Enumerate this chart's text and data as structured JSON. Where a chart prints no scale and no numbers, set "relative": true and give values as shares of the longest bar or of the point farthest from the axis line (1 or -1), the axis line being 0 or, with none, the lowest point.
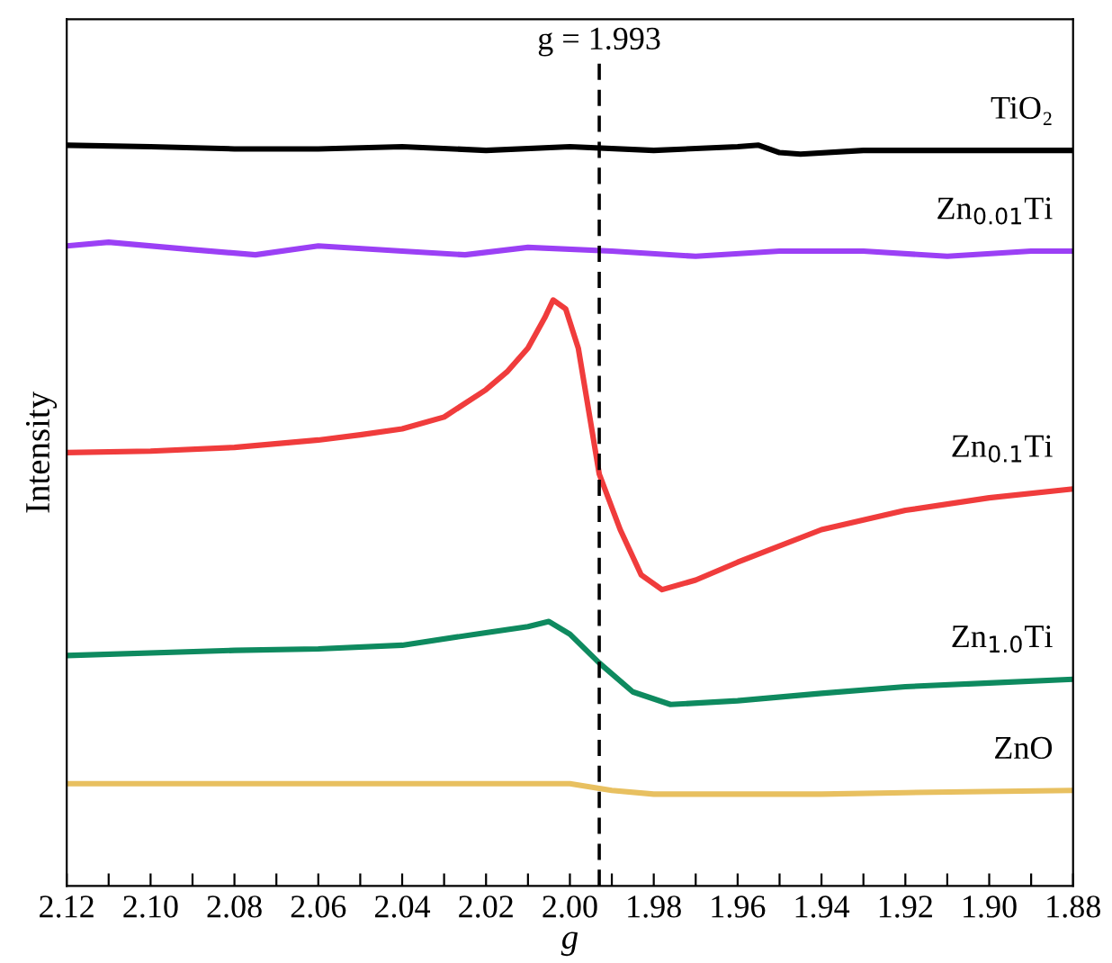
{
  "chart_data": {
    "type": "line",
    "xlabel": "g",
    "ylabel": "Intensity",
    "relative": true,
    "xlim": [
      2.12,
      1.88
    ],
    "xticks": [
      {
        "value": 2.12,
        "label": "2.12"
      },
      {
        "value": 2.11,
        "label": null
      },
      {
        "value": 2.1,
        "label": "2.10"
      },
      {
        "value": 2.09,
        "label": null
      },
      {
        "value": 2.08,
        "label": "2.08"
      },
      {
        "value": 2.07,
        "label": null
      },
      {
        "value": 2.06,
        "label": "2.06"
      },
      {
        "value": 2.05,
        "label": null
      },
      {
        "value": 2.04,
        "label": "2.04"
      },
      {
        "value": 2.03,
        "label": null
      },
      {
        "value": 2.02,
        "label": "2.02"
      },
      {
        "value": 2.01,
        "label": null
      },
      {
        "value": 2.0,
        "label": "2.00"
      },
      {
        "value": 1.99,
        "label": null
      },
      {
        "value": 1.98,
        "label": "1.98"
      },
      {
        "value": 1.97,
        "label": null
      },
      {
        "value": 1.96,
        "label": "1.96"
      },
      {
        "value": 1.95,
        "label": null
      },
      {
        "value": 1.94,
        "label": "1.94"
      },
      {
        "value": 1.93,
        "label": null
      },
      {
        "value": 1.92,
        "label": "1.92"
      },
      {
        "value": 1.91,
        "label": null
      },
      {
        "value": 1.9,
        "label": "1.90"
      },
      {
        "value": 1.89,
        "label": null
      },
      {
        "value": 1.88,
        "label": "1.88"
      }
    ],
    "ref_lines": [
      {
        "axis": "x",
        "value": 1.993,
        "label": "g = 1.993",
        "color": "#000000",
        "line_style": "dashed"
      }
    ],
    "series": [
      {
        "name": "TiO₂",
        "color": "#000000",
        "x": [
          2.12,
          2.1,
          2.08,
          2.06,
          2.04,
          2.02,
          2.0,
          1.98,
          1.96,
          1.955,
          1.95,
          1.945,
          1.93,
          1.91,
          1.88
        ],
        "values": [
          1.0,
          0.998,
          0.995,
          0.995,
          0.998,
          0.993,
          0.998,
          0.993,
          0.998,
          1.0,
          0.99,
          0.988,
          0.993,
          0.993,
          0.993
        ]
      },
      {
        "name": "Zn$_{0.01}$Ti",
        "color": "#9b40f5",
        "x": [
          2.12,
          2.11,
          2.09,
          2.075,
          2.06,
          2.04,
          2.025,
          2.01,
          1.99,
          1.97,
          1.95,
          1.93,
          1.91,
          1.89,
          1.88
        ],
        "values": [
          0.864,
          0.869,
          0.859,
          0.852,
          0.864,
          0.857,
          0.852,
          0.862,
          0.857,
          0.85,
          0.857,
          0.857,
          0.85,
          0.857,
          0.857
        ]
      },
      {
        "name": "Zn$_{0.1}$Ti",
        "color": "#f03c3c",
        "x": [
          2.12,
          2.1,
          2.08,
          2.06,
          2.05,
          2.04,
          2.03,
          2.02,
          2.015,
          2.01,
          2.006,
          2.004,
          2.001,
          1.998,
          1.993,
          1.988,
          1.983,
          1.978,
          1.97,
          1.96,
          1.94,
          1.92,
          1.9,
          1.88
        ],
        "values": [
          0.585,
          0.587,
          0.592,
          0.602,
          0.609,
          0.617,
          0.633,
          0.67,
          0.694,
          0.726,
          0.767,
          0.791,
          0.779,
          0.726,
          0.556,
          0.481,
          0.42,
          0.4,
          0.413,
          0.437,
          0.481,
          0.507,
          0.524,
          0.536
        ]
      },
      {
        "name": "Zn$_{1.0}$Ti",
        "color": "#0e8a5f",
        "x": [
          2.12,
          2.08,
          2.06,
          2.04,
          2.02,
          2.01,
          2.005,
          2.0,
          1.993,
          1.985,
          1.976,
          1.96,
          1.94,
          1.92,
          1.9,
          1.88
        ],
        "values": [
          0.311,
          0.318,
          0.32,
          0.325,
          0.342,
          0.35,
          0.357,
          0.34,
          0.301,
          0.262,
          0.245,
          0.25,
          0.26,
          0.269,
          0.274,
          0.279
        ]
      },
      {
        "name": "ZnO",
        "color": "#e8c060",
        "x": [
          2.12,
          2.06,
          2.0,
          1.99,
          1.98,
          1.94,
          1.92,
          1.88
        ],
        "values": [
          0.138,
          0.138,
          0.138,
          0.129,
          0.124,
          0.124,
          0.126,
          0.129
        ]
      }
    ]
  }
}
